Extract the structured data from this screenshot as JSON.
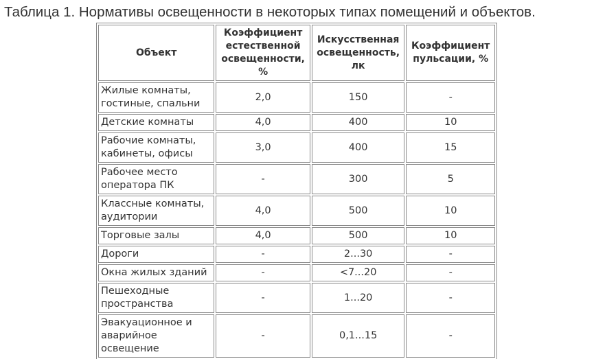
{
  "title": "Таблица 1. Нормативы освещенности в некоторых типах помещений и объектов.",
  "table": {
    "headers": [
      "Объект",
      "Коэффициент естественной освещенности, %",
      "Искусственная освещенность, лк",
      "Коэффициент пульсации, %"
    ],
    "rows": [
      [
        "Жилые комнаты, гостиные, спальни",
        "2,0",
        "150",
        "-"
      ],
      [
        "Детские комнаты",
        "4,0",
        "400",
        "10"
      ],
      [
        "Рабочие комнаты, кабинеты, офисы",
        "3,0",
        "400",
        "15"
      ],
      [
        "Рабочее место оператора ПК",
        "-",
        "300",
        "5"
      ],
      [
        "Классные комнаты, аудитории",
        "4,0",
        "500",
        "10"
      ],
      [
        "Торговые залы",
        "4,0",
        "500",
        "10"
      ],
      [
        "Дороги",
        "-",
        "2...30",
        "-"
      ],
      [
        "Окна жилых зданий",
        "-",
        "<7...20",
        "-"
      ],
      [
        "Пешеходные пространства",
        "-",
        "1...20",
        "-"
      ],
      [
        "Эвакуационное и аварийное освещение",
        "-",
        "0,1...15",
        "-"
      ]
    ]
  }
}
